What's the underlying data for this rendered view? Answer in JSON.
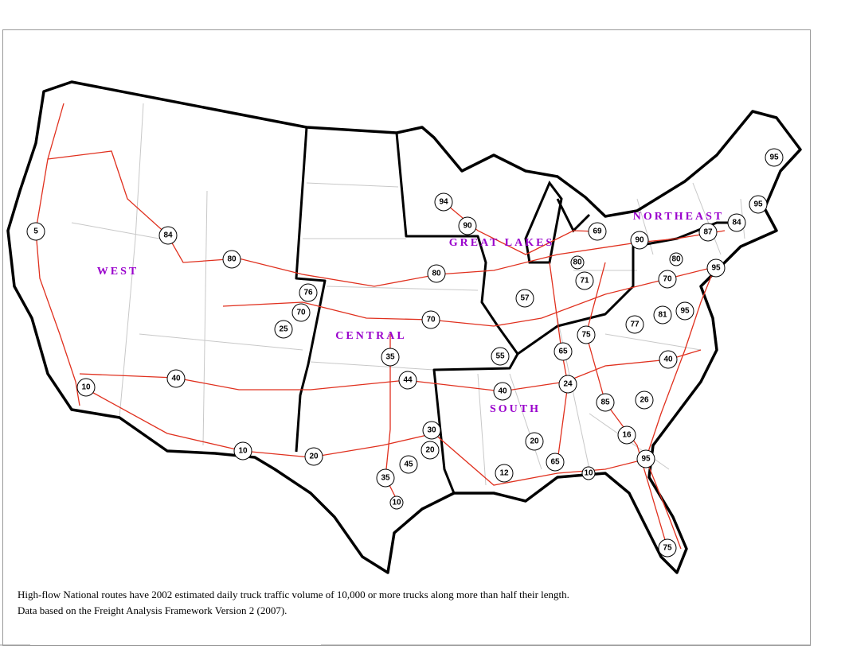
{
  "regions": [
    {
      "label": "WEST"
    },
    {
      "label": "CENTRAL"
    },
    {
      "label": "GREAT LAKES"
    },
    {
      "label": "NORTHEAST"
    },
    {
      "label": "SOUTH"
    }
  ],
  "shields": [
    "5",
    "84",
    "80",
    "76",
    "70",
    "25",
    "94",
    "90",
    "80",
    "70",
    "35",
    "44",
    "55",
    "40",
    "57",
    "69",
    "80",
    "71",
    "90",
    "80",
    "70",
    "95",
    "87",
    "84",
    "95",
    "95",
    "95",
    "81",
    "77",
    "75",
    "65",
    "40",
    "24",
    "85",
    "26",
    "16",
    "95",
    "75",
    "10",
    "65",
    "20",
    "12",
    "30",
    "20",
    "45",
    "35",
    "10",
    "20",
    "10",
    "40",
    "10"
  ],
  "caption": [
    "High-flow National routes have 2002 estimated daily truck traffic volume of 10,000 or more trucks along more than half their length.",
    "Data based on the Freight Analysis Framework Version 2 (2007)."
  ]
}
